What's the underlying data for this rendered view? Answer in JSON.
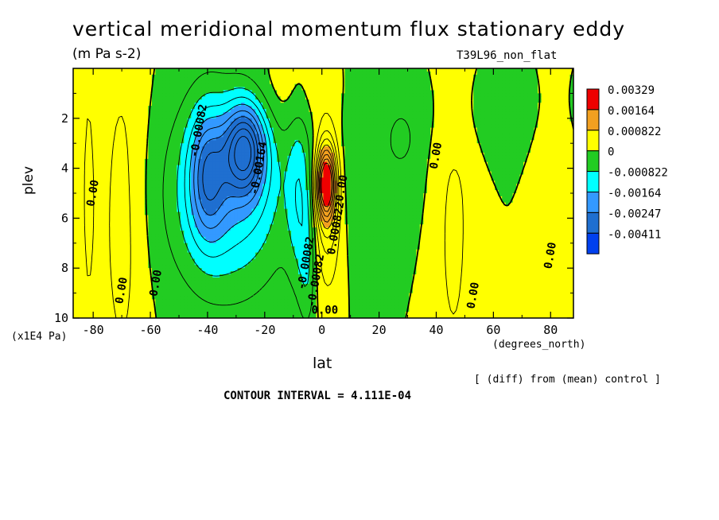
{
  "chart_data": {
    "type": "heatmap",
    "title": "vertical meridional momentum flux stationary eddy",
    "subtitle": "(m Pa s-2)",
    "run_label": "T39L96_non_flat",
    "xlabel": "lat",
    "x_units": "(degrees_north)",
    "ylabel": "plev",
    "y_units": "(x1E4 Pa)",
    "xlim": [
      -87,
      88
    ],
    "ylim": [
      10,
      0
    ],
    "x_ticks": [
      -80,
      -60,
      -40,
      -20,
      0,
      20,
      40,
      60,
      80
    ],
    "x_tick_labels": [
      "-80",
      "-60",
      "-40",
      "-20",
      "0",
      "20",
      "40",
      "60",
      "80"
    ],
    "y_ticks": [
      2,
      4,
      6,
      8,
      10
    ],
    "y_tick_labels": [
      "2",
      "4",
      "6",
      "8",
      "10"
    ],
    "contour_interval_text": "CONTOUR INTERVAL = 4.111E-04",
    "note": "[ (diff) from (mean) control ]",
    "legend": [
      {
        "label": "0.00329",
        "color": "#ee0000"
      },
      {
        "label": "0.00164",
        "color": "#f2a020"
      },
      {
        "label": "0.000822",
        "color": "#ffff00"
      },
      {
        "label": "0",
        "color": "#22cc22"
      },
      {
        "label": "-0.000822",
        "color": "#00ffff"
      },
      {
        "label": "-0.00164",
        "color": "#3399ff"
      },
      {
        "label": "-0.00247",
        "color": "#1f6fd0"
      },
      {
        "label": "-0.00411",
        "color": "#0040ee"
      }
    ],
    "contour_labels": [
      {
        "text": "0.00",
        "lon": 1,
        "lev": 9.7
      },
      {
        "text": "0.00",
        "lon": -80,
        "lev": 5.0
      },
      {
        "text": "-0.00082",
        "lon": -43,
        "lev": 2.5
      },
      {
        "text": "-0.00164",
        "lon": -22,
        "lev": 4.0
      },
      {
        "text": "0.00",
        "lon": 40,
        "lev": 3.5
      },
      {
        "text": "0.00",
        "lon": 7,
        "lev": 4.8
      },
      {
        "text": "0.000822",
        "lon": 5,
        "lev": 6.4
      },
      {
        "text": "-0.00082",
        "lon": -5.5,
        "lev": 7.8
      },
      {
        "text": "-0.00082",
        "lon": -2,
        "lev": 8.5
      },
      {
        "text": "0.00",
        "lon": -70,
        "lev": 8.9
      },
      {
        "text": "0.00",
        "lon": -58,
        "lev": 8.6
      },
      {
        "text": "0.00",
        "lon": 53,
        "lev": 9.1
      },
      {
        "text": "0.00",
        "lon": 80,
        "lev": 7.5
      }
    ]
  }
}
